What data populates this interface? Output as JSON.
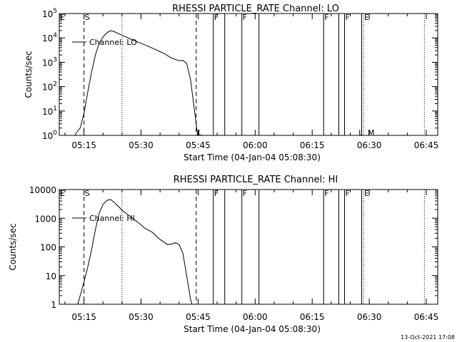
{
  "footer": {
    "timestamp": "13-Oct-2021 17:08"
  },
  "chart_data": [
    {
      "type": "line",
      "title": "RHESSI PARTICLE_RATE Channel: LO",
      "xlabel": "Start Time (04-Jan-04 05:08:30)",
      "ylabel": "Counts/sec",
      "yscale": "log",
      "xlim": [
        "05:08:30",
        "06:48:00"
      ],
      "ylim": [
        1,
        100000
      ],
      "xticks": [
        "05:15",
        "05:30",
        "05:45",
        "06:00",
        "06:15",
        "06:30",
        "06:45"
      ],
      "yticks": [
        {
          "value": 1,
          "base": "10",
          "exp": "0"
        },
        {
          "value": 10,
          "base": "10",
          "exp": "1"
        },
        {
          "value": 100,
          "base": "10",
          "exp": "2"
        },
        {
          "value": 1000,
          "base": "10",
          "exp": "3"
        },
        {
          "value": 10000,
          "base": "10",
          "exp": "4"
        },
        {
          "value": 100000,
          "base": "10",
          "exp": "5"
        }
      ],
      "legend": {
        "label": "Channel: LO",
        "placement": "top-left"
      },
      "series": [
        {
          "name": "Channel: LO",
          "x": [
            "05:12:00",
            "05:13:00",
            "05:14:00",
            "05:15:00",
            "05:16:00",
            "05:17:00",
            "05:18:00",
            "05:19:00",
            "05:20:00",
            "05:21:00",
            "05:22:00",
            "05:23:00",
            "05:24:00",
            "05:26:00",
            "05:28:00",
            "05:30:00",
            "05:33:00",
            "05:36:00",
            "05:38:00",
            "05:40:00",
            "05:41:00",
            "05:42:00",
            "05:43:00",
            "05:44:00",
            "05:45:00"
          ],
          "values": [
            0.6,
            1.3,
            2,
            8,
            60,
            400,
            2000,
            6000,
            11000,
            16000,
            20000,
            18000,
            15000,
            11000,
            8000,
            6000,
            3800,
            2300,
            1500,
            1150,
            1200,
            900,
            200,
            12,
            0.7
          ]
        }
      ],
      "markers": [
        {
          "label": "E",
          "time": "05:08:30",
          "style": "none"
        },
        {
          "label": "S",
          "time": "05:15:00",
          "style": "dashed"
        },
        {
          "label": "",
          "time": "05:25:00",
          "style": "dotted"
        },
        {
          "label": "",
          "time": "05:44:30",
          "style": "dashed"
        },
        {
          "label": "F",
          "time": "05:49:00",
          "style": "solid"
        },
        {
          "label": "",
          "time": "05:52:00",
          "style": "solid"
        },
        {
          "label": "F",
          "time": "05:56:30",
          "style": "solid"
        },
        {
          "label": "",
          "time": "06:01:00",
          "style": "solid"
        },
        {
          "label": "F",
          "time": "06:18:00",
          "style": "solid"
        },
        {
          "label": "",
          "time": "06:22:00",
          "style": "solid"
        },
        {
          "label": "F",
          "time": "06:23:30",
          "style": "solid"
        },
        {
          "label": "",
          "time": "06:28:00",
          "style": "solid"
        },
        {
          "label": "E",
          "time": "06:28:30",
          "style": "dotted"
        },
        {
          "label": "",
          "time": "06:44:30",
          "style": "dotted"
        }
      ],
      "bottom_labels": [
        {
          "label": "L",
          "time": "05:45:30"
        },
        {
          "label": "L",
          "time": "06:27:45"
        },
        {
          "label": "M",
          "time": "06:30:30"
        }
      ]
    },
    {
      "type": "line",
      "title": "RHESSI PARTICLE_RATE Channel: HI",
      "xlabel": "Start Time (04-Jan-04 05:08:30)",
      "ylabel": "Counts/sec",
      "yscale": "log",
      "xlim": [
        "05:08:30",
        "06:48:00"
      ],
      "ylim": [
        1,
        10000
      ],
      "xticks": [
        "05:15",
        "05:30",
        "05:45",
        "06:00",
        "06:15",
        "06:30",
        "06:45"
      ],
      "yticks": [
        {
          "value": 1,
          "label": "1"
        },
        {
          "value": 10,
          "label": "10"
        },
        {
          "value": 100,
          "label": "100"
        },
        {
          "value": 1000,
          "label": "1000"
        },
        {
          "value": 10000,
          "label": "10000"
        }
      ],
      "legend": {
        "label": "Channel: HI",
        "placement": "top-left"
      },
      "series": [
        {
          "name": "Channel: HI",
          "x": [
            "05:13:00",
            "05:14:00",
            "05:15:00",
            "05:16:00",
            "05:17:00",
            "05:18:00",
            "05:19:00",
            "05:20:00",
            "05:21:00",
            "05:22:00",
            "05:23:00",
            "05:24:00",
            "05:25:00",
            "05:27:00",
            "05:29:00",
            "05:31:00",
            "05:33:00",
            "05:35:00",
            "05:37:00",
            "05:38:00",
            "05:39:00",
            "05:40:00",
            "05:41:00",
            "05:42:00",
            "05:43:00",
            "05:44:00"
          ],
          "values": [
            0.7,
            2,
            6,
            20,
            80,
            400,
            1500,
            3000,
            4200,
            4500,
            3500,
            2600,
            1900,
            1200,
            750,
            450,
            320,
            180,
            120,
            125,
            140,
            120,
            60,
            10,
            1.5,
            0.5
          ]
        }
      ],
      "markers": [
        {
          "label": "E",
          "time": "05:08:30",
          "style": "none"
        },
        {
          "label": "S",
          "time": "05:15:00",
          "style": "dashed"
        },
        {
          "label": "",
          "time": "05:25:00",
          "style": "dotted"
        },
        {
          "label": "",
          "time": "05:44:30",
          "style": "dashed"
        },
        {
          "label": "F",
          "time": "05:49:00",
          "style": "solid"
        },
        {
          "label": "",
          "time": "05:52:00",
          "style": "solid"
        },
        {
          "label": "F",
          "time": "05:56:30",
          "style": "solid"
        },
        {
          "label": "",
          "time": "06:01:00",
          "style": "solid"
        },
        {
          "label": "F",
          "time": "06:18:00",
          "style": "solid"
        },
        {
          "label": "",
          "time": "06:22:00",
          "style": "solid"
        },
        {
          "label": "F",
          "time": "06:23:30",
          "style": "solid"
        },
        {
          "label": "",
          "time": "06:28:00",
          "style": "solid"
        },
        {
          "label": "E",
          "time": "06:28:30",
          "style": "dotted"
        },
        {
          "label": "",
          "time": "06:44:30",
          "style": "dotted"
        }
      ],
      "bottom_labels": []
    }
  ]
}
